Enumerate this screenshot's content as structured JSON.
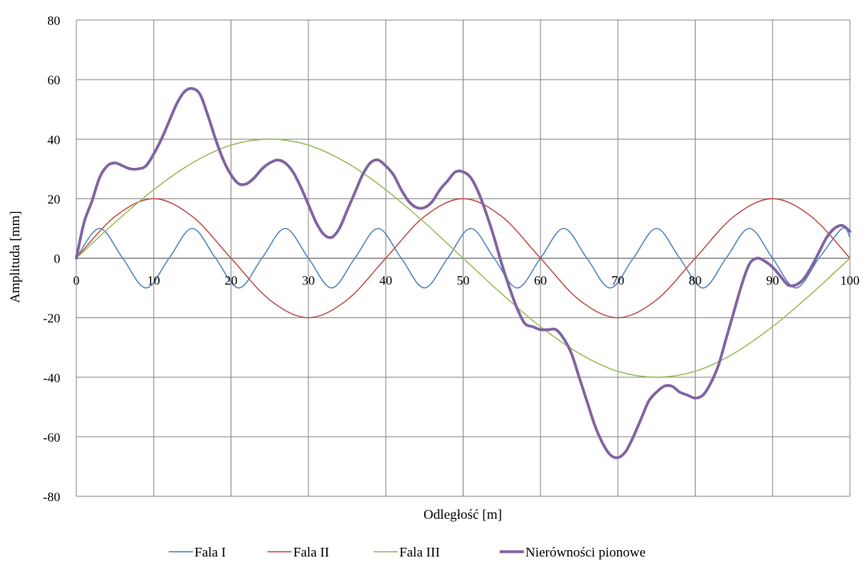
{
  "chart_data": {
    "type": "line",
    "title": "",
    "xlabel": "Odległość [m]",
    "ylabel": "Amplituda [mm]",
    "xlim": [
      0,
      100
    ],
    "ylim": [
      -80,
      80
    ],
    "x_ticks": [
      "0",
      "10",
      "20",
      "30",
      "40",
      "50",
      "60",
      "70",
      "80",
      "90",
      "100"
    ],
    "y_ticks": [
      "80",
      "60",
      "40",
      "20",
      "0",
      "-20",
      "-40",
      "-60",
      "-80"
    ],
    "grid": true,
    "legend_position": "bottom",
    "series": [
      {
        "name": "Fala I",
        "color": "#4F81BD",
        "line_width": "thin",
        "points": [
          [
            0,
            0
          ],
          [
            3,
            10
          ],
          [
            6,
            0
          ],
          [
            9,
            -10
          ],
          [
            12,
            0
          ],
          [
            15,
            10
          ],
          [
            18,
            0
          ],
          [
            21,
            -10
          ],
          [
            24,
            0
          ],
          [
            27,
            10
          ],
          [
            30,
            0
          ],
          [
            33,
            -10
          ],
          [
            36,
            0
          ],
          [
            39,
            10
          ],
          [
            42,
            0
          ],
          [
            45,
            -10
          ],
          [
            48,
            0
          ],
          [
            51,
            10
          ],
          [
            54,
            0
          ],
          [
            57,
            -10
          ],
          [
            60,
            0
          ],
          [
            63,
            10
          ],
          [
            66,
            0
          ],
          [
            69,
            -10
          ],
          [
            72,
            0
          ],
          [
            75,
            10
          ],
          [
            78,
            0
          ],
          [
            81,
            -10
          ],
          [
            84,
            0
          ],
          [
            87,
            10
          ],
          [
            90,
            0
          ],
          [
            93,
            -10
          ],
          [
            96,
            0
          ],
          [
            99,
            10
          ],
          [
            100,
            7
          ]
        ]
      },
      {
        "name": "Fala II",
        "color": "#C0504D",
        "line_width": "thin",
        "points": [
          [
            0,
            0
          ],
          [
            5,
            14
          ],
          [
            10,
            20
          ],
          [
            15,
            14
          ],
          [
            20,
            0
          ],
          [
            25,
            -14
          ],
          [
            30,
            -20
          ],
          [
            35,
            -14
          ],
          [
            40,
            0
          ],
          [
            45,
            14
          ],
          [
            50,
            20
          ],
          [
            55,
            14
          ],
          [
            60,
            0
          ],
          [
            65,
            -14
          ],
          [
            70,
            -20
          ],
          [
            75,
            -14
          ],
          [
            80,
            0
          ],
          [
            85,
            14
          ],
          [
            90,
            20
          ],
          [
            95,
            14
          ],
          [
            100,
            0
          ]
        ]
      },
      {
        "name": "Fala III",
        "color": "#9BBB59",
        "line_width": "thin",
        "points": [
          [
            0,
            0
          ],
          [
            5,
            12
          ],
          [
            10,
            23
          ],
          [
            15,
            32
          ],
          [
            20,
            38
          ],
          [
            25,
            40
          ],
          [
            30,
            38
          ],
          [
            35,
            32
          ],
          [
            40,
            23
          ],
          [
            45,
            12
          ],
          [
            50,
            0
          ],
          [
            55,
            -12
          ],
          [
            60,
            -23
          ],
          [
            65,
            -32
          ],
          [
            70,
            -38
          ],
          [
            75,
            -40
          ],
          [
            80,
            -38
          ],
          [
            85,
            -32
          ],
          [
            90,
            -23
          ],
          [
            95,
            -12
          ],
          [
            100,
            0
          ]
        ]
      },
      {
        "name": "Nierówności pionowe",
        "color": "#8064A2",
        "line_width": "thick",
        "points": [
          [
            0,
            0
          ],
          [
            1,
            12
          ],
          [
            2,
            19
          ],
          [
            3,
            27
          ],
          [
            4,
            31
          ],
          [
            5,
            32
          ],
          [
            6,
            31
          ],
          [
            7,
            30
          ],
          [
            8,
            30
          ],
          [
            9,
            31
          ],
          [
            10,
            35
          ],
          [
            11,
            40
          ],
          [
            12,
            46
          ],
          [
            13,
            52
          ],
          [
            14,
            56
          ],
          [
            15,
            57
          ],
          [
            16,
            55
          ],
          [
            17,
            48
          ],
          [
            18,
            40
          ],
          [
            19,
            33
          ],
          [
            20,
            28
          ],
          [
            21,
            25
          ],
          [
            22,
            25
          ],
          [
            23,
            27
          ],
          [
            24,
            30
          ],
          [
            25,
            32
          ],
          [
            26,
            33
          ],
          [
            27,
            32
          ],
          [
            28,
            29
          ],
          [
            29,
            24
          ],
          [
            30,
            18
          ],
          [
            31,
            12
          ],
          [
            32,
            8
          ],
          [
            33,
            7
          ],
          [
            34,
            10
          ],
          [
            35,
            16
          ],
          [
            36,
            22
          ],
          [
            37,
            28
          ],
          [
            38,
            32
          ],
          [
            39,
            33
          ],
          [
            40,
            31
          ],
          [
            41,
            28
          ],
          [
            42,
            23
          ],
          [
            43,
            19
          ],
          [
            44,
            17
          ],
          [
            45,
            17
          ],
          [
            46,
            19
          ],
          [
            47,
            23
          ],
          [
            48,
            26
          ],
          [
            49,
            29
          ],
          [
            50,
            29
          ],
          [
            51,
            27
          ],
          [
            52,
            22
          ],
          [
            53,
            15
          ],
          [
            54,
            7
          ],
          [
            55,
            -2
          ],
          [
            56,
            -10
          ],
          [
            57,
            -17
          ],
          [
            58,
            -22
          ],
          [
            59,
            -23
          ],
          [
            60,
            -24
          ],
          [
            61,
            -24
          ],
          [
            62,
            -24
          ],
          [
            63,
            -27
          ],
          [
            64,
            -32
          ],
          [
            65,
            -40
          ],
          [
            66,
            -48
          ],
          [
            67,
            -56
          ],
          [
            68,
            -62
          ],
          [
            69,
            -66
          ],
          [
            70,
            -67
          ],
          [
            71,
            -65
          ],
          [
            72,
            -60
          ],
          [
            73,
            -54
          ],
          [
            74,
            -48
          ],
          [
            75,
            -45
          ],
          [
            76,
            -43
          ],
          [
            77,
            -43
          ],
          [
            78,
            -45
          ],
          [
            79,
            -46
          ],
          [
            80,
            -47
          ],
          [
            81,
            -46
          ],
          [
            82,
            -42
          ],
          [
            83,
            -36
          ],
          [
            84,
            -27
          ],
          [
            85,
            -18
          ],
          [
            86,
            -9
          ],
          [
            87,
            -2
          ],
          [
            88,
            0
          ],
          [
            89,
            -1
          ],
          [
            90,
            -3
          ],
          [
            91,
            -6
          ],
          [
            92,
            -9
          ],
          [
            93,
            -9
          ],
          [
            94,
            -7
          ],
          [
            95,
            -3
          ],
          [
            96,
            2
          ],
          [
            97,
            7
          ],
          [
            98,
            10
          ],
          [
            99,
            11
          ],
          [
            100,
            9
          ]
        ]
      }
    ]
  }
}
